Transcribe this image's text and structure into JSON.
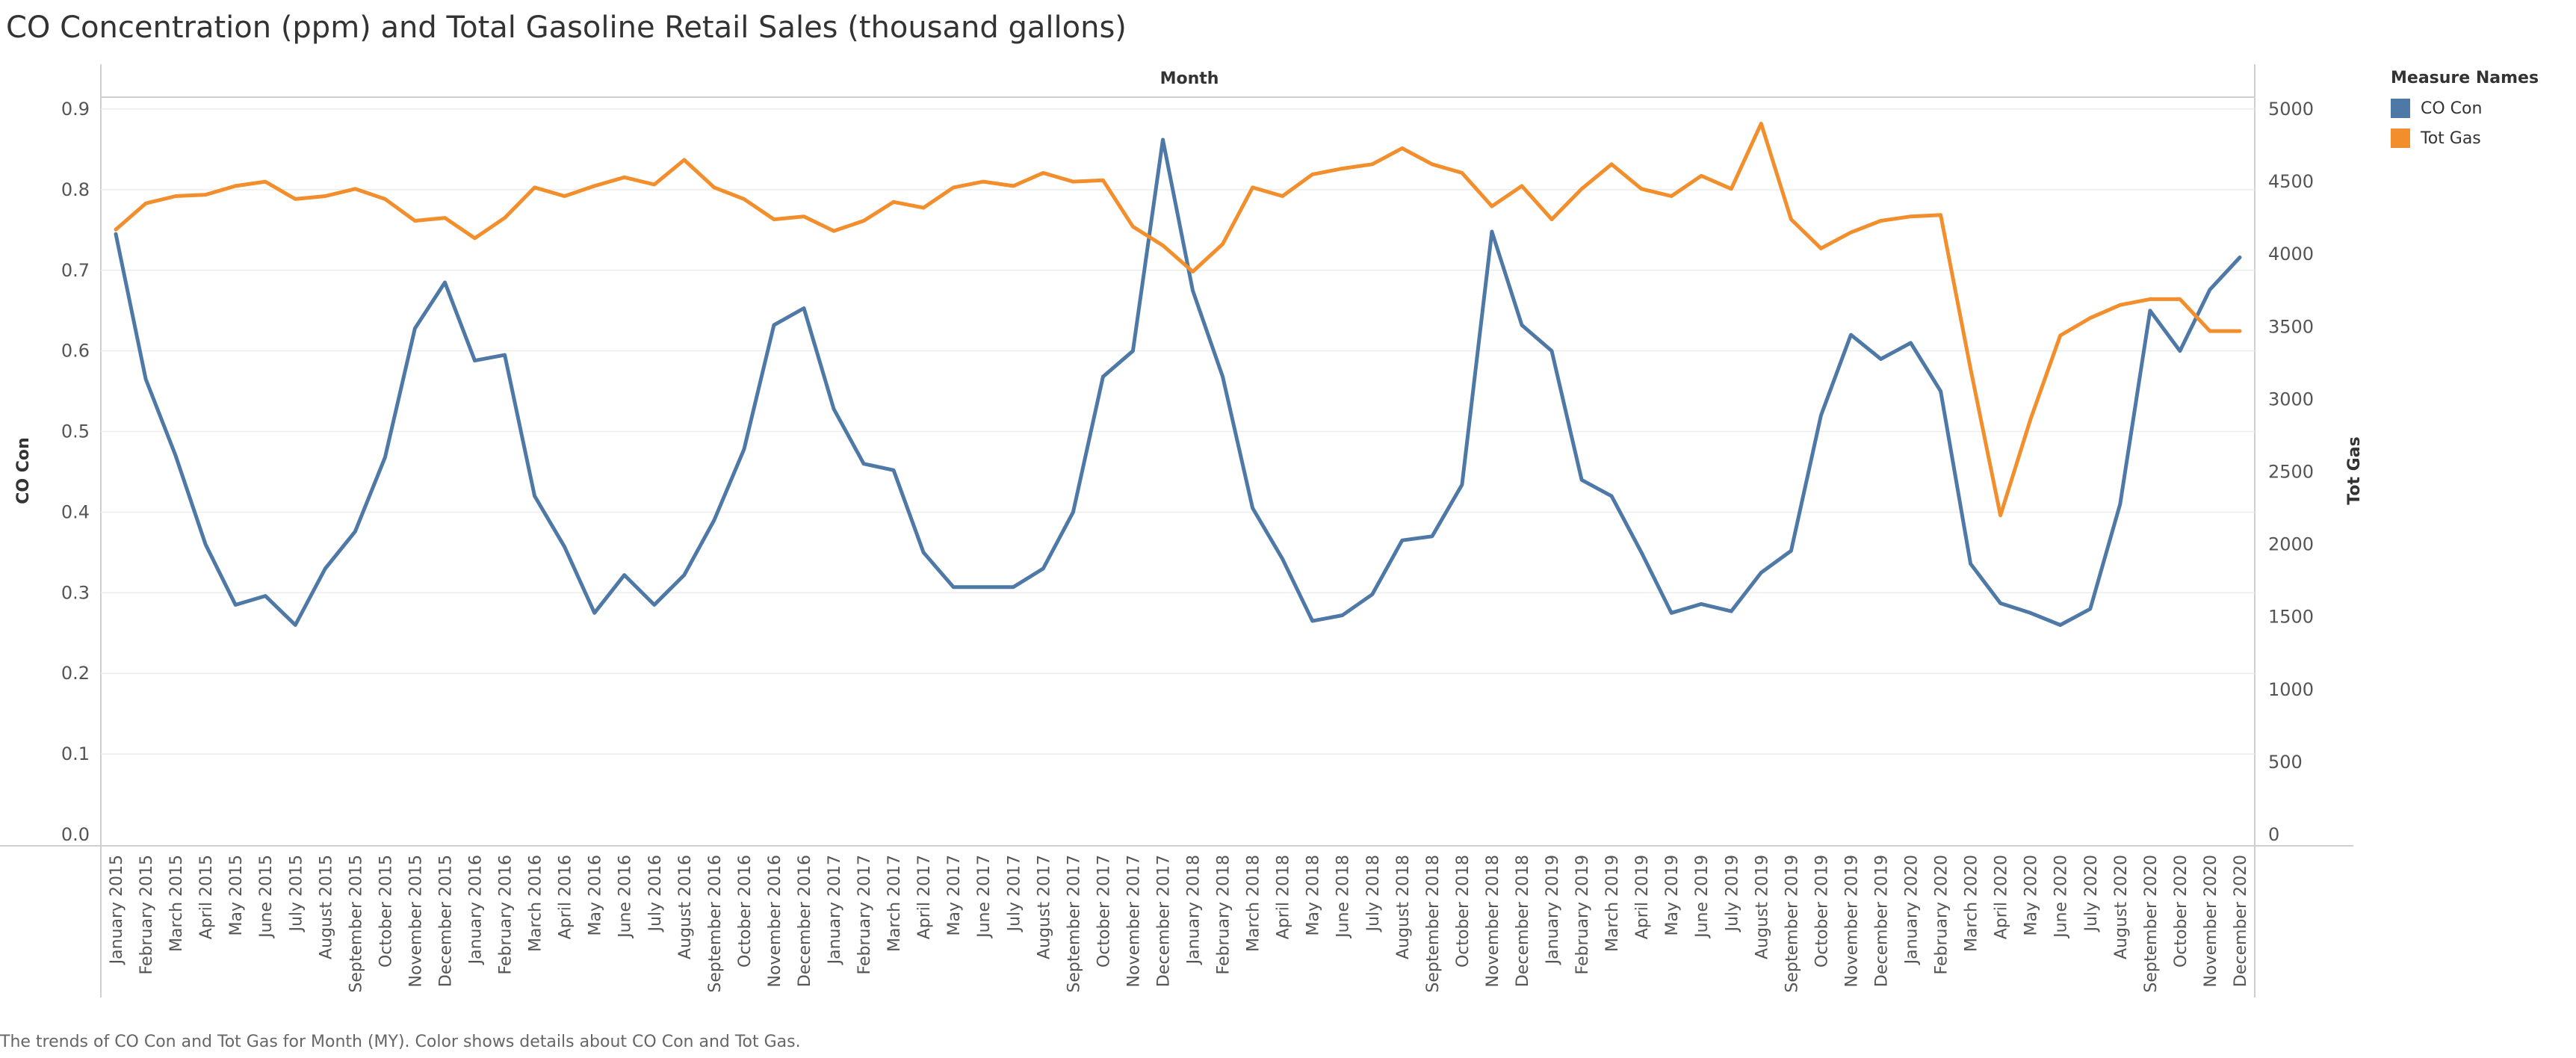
{
  "title": "CO Concentration (ppm) and Total Gasoline Retail Sales (thousand gallons)",
  "caption": "The trends of CO Con and Tot Gas for Month (MY).  Color shows details about CO Con and Tot Gas.",
  "legend": {
    "title": "Measure Names",
    "items": [
      {
        "label": "CO Con",
        "color": "#4e79a7"
      },
      {
        "label": "Tot Gas",
        "color": "#f28e2b"
      }
    ]
  },
  "chart_data": {
    "type": "line",
    "xlabel": "Month",
    "ylabel": "CO Con",
    "y2label": "Tot Gas",
    "ylim": [
      0,
      0.9
    ],
    "y2lim": [
      0,
      5000
    ],
    "yticks": [
      "0.0",
      "0.1",
      "0.2",
      "0.3",
      "0.4",
      "0.5",
      "0.6",
      "0.7",
      "0.8",
      "0.9"
    ],
    "y2ticks": [
      "0",
      "500",
      "1000",
      "1500",
      "2000",
      "2500",
      "3000",
      "3500",
      "4000",
      "4500",
      "5000"
    ],
    "categories": [
      "January 2015",
      "February 2015",
      "March 2015",
      "April 2015",
      "May 2015",
      "June 2015",
      "July 2015",
      "August 2015",
      "September 2015",
      "October 2015",
      "November 2015",
      "December 2015",
      "January 2016",
      "February 2016",
      "March 2016",
      "April 2016",
      "May 2016",
      "June 2016",
      "July 2016",
      "August 2016",
      "September 2016",
      "October 2016",
      "November 2016",
      "December 2016",
      "January 2017",
      "February 2017",
      "March 2017",
      "April 2017",
      "May 2017",
      "June 2017",
      "July 2017",
      "August 2017",
      "September 2017",
      "October 2017",
      "November 2017",
      "December 2017",
      "January 2018",
      "February 2018",
      "March 2018",
      "April 2018",
      "May 2018",
      "June 2018",
      "July 2018",
      "August 2018",
      "September 2018",
      "October 2018",
      "November 2018",
      "December 2018",
      "January 2019",
      "February 2019",
      "March 2019",
      "April 2019",
      "May 2019",
      "June 2019",
      "July 2019",
      "August 2019",
      "September 2019",
      "October 2019",
      "November 2019",
      "December 2019",
      "January 2020",
      "February 2020",
      "March 2020",
      "April 2020",
      "May 2020",
      "June 2020",
      "July 2020",
      "August 2020",
      "September 2020",
      "October 2020",
      "November 2020",
      "December 2020"
    ],
    "grid": "horizontal",
    "legend": "right",
    "series": [
      {
        "name": "CO Con",
        "axis": "left",
        "color": "#4e79a7",
        "values": [
          0.745,
          0.565,
          0.47,
          0.36,
          0.285,
          0.296,
          0.26,
          0.33,
          0.376,
          0.468,
          0.628,
          0.685,
          0.588,
          0.595,
          0.42,
          0.357,
          0.275,
          0.322,
          0.285,
          0.322,
          0.39,
          0.478,
          0.632,
          0.653,
          0.528,
          0.46,
          0.452,
          0.35,
          0.307,
          0.307,
          0.307,
          0.33,
          0.4,
          0.568,
          0.6,
          0.862,
          0.675,
          0.568,
          0.405,
          0.342,
          0.265,
          0.272,
          0.298,
          0.365,
          0.37,
          0.434,
          0.748,
          0.632,
          0.6,
          0.44,
          0.42,
          0.35,
          0.275,
          0.286,
          0.277,
          0.325,
          0.352,
          0.52,
          0.62,
          0.59,
          0.61,
          0.55,
          0.336,
          0.287,
          0.275,
          0.26,
          0.28,
          0.41,
          0.65,
          0.6,
          0.676,
          0.716
        ]
      },
      {
        "name": "Tot Gas",
        "axis": "right",
        "color": "#f28e2b",
        "values": [
          4170,
          4350,
          4400,
          4410,
          4470,
          4500,
          4380,
          4400,
          4450,
          4380,
          4230,
          4250,
          4110,
          4250,
          4460,
          4400,
          4470,
          4530,
          4480,
          4650,
          4460,
          4380,
          4240,
          4260,
          4160,
          4230,
          4360,
          4320,
          4460,
          4500,
          4470,
          4560,
          4500,
          4510,
          4190,
          4060,
          3880,
          4070,
          4460,
          4400,
          4550,
          4590,
          4620,
          4730,
          4620,
          4560,
          4330,
          4470,
          4240,
          4450,
          4620,
          4450,
          4400,
          4540,
          4450,
          4900,
          4240,
          4040,
          4150,
          4230,
          4260,
          4270,
          3210,
          2200,
          2860,
          3440,
          3560,
          3650,
          3690,
          3690,
          3470,
          3470
        ]
      }
    ]
  }
}
